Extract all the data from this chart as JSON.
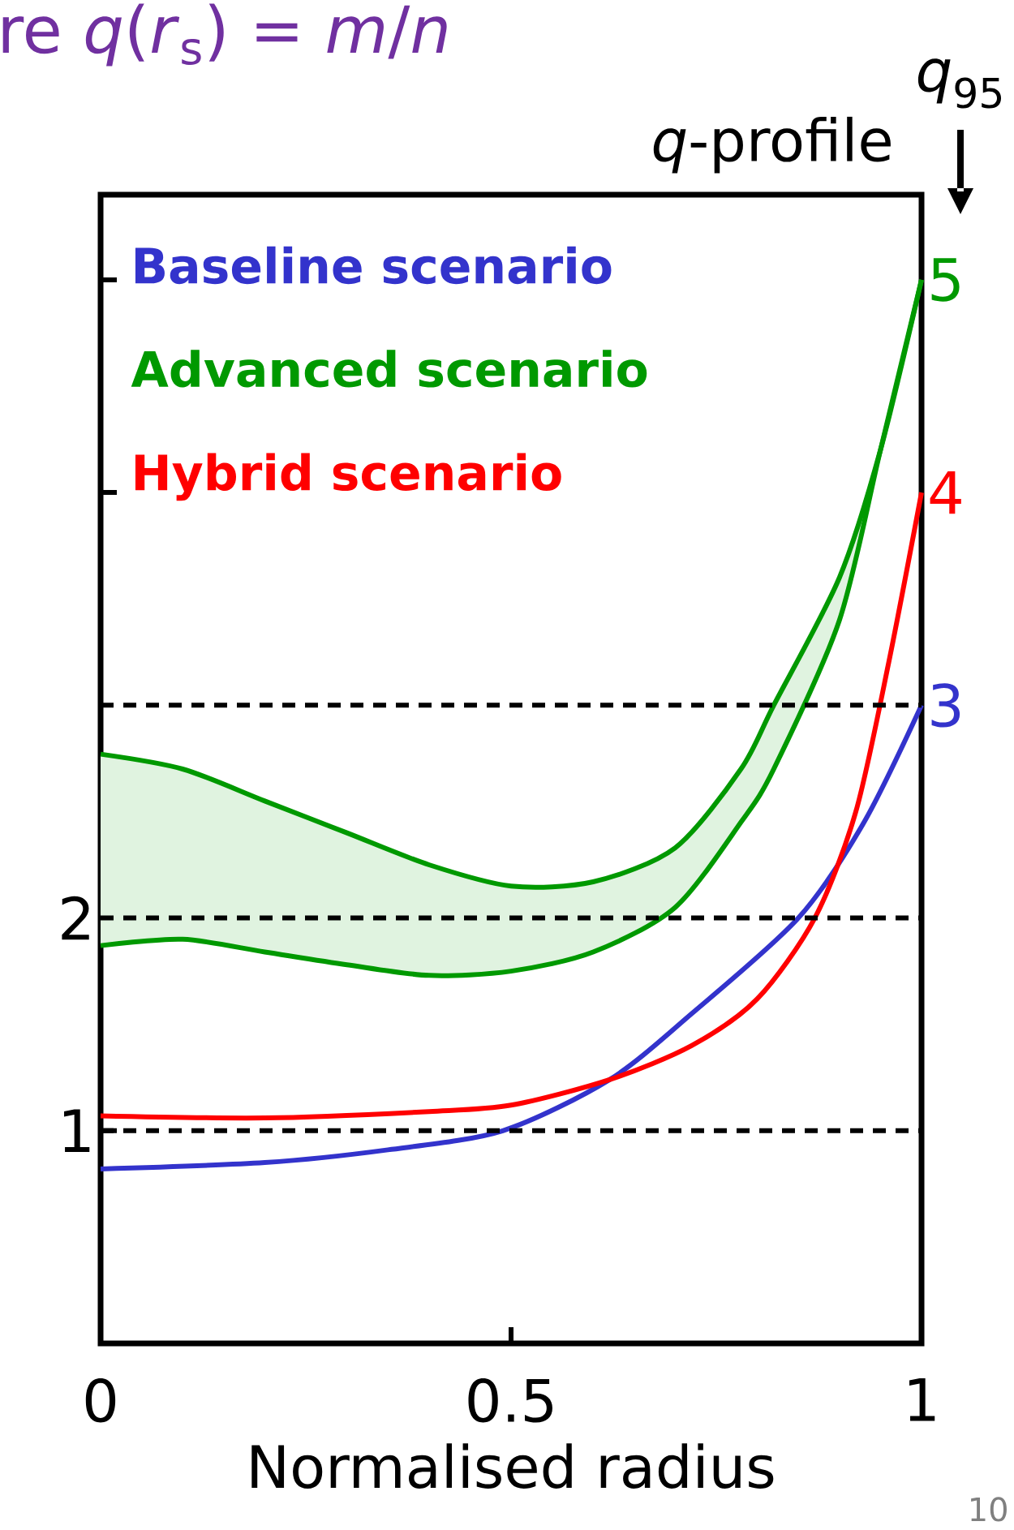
{
  "chart_data": {
    "type": "line",
    "title": "re *q*(*r*$_{s}$) = *m*/*n*",
    "xlabel": "Normalised radius",
    "annotations": [
      "*q*-profile",
      "*q*$_{95}$",
      "10"
    ],
    "xlim": [
      0,
      1
    ],
    "ylim": [
      0,
      5.4
    ],
    "xticks": [
      0,
      0.5,
      1
    ],
    "yticks": [
      1,
      2,
      {
        "value": 4,
        "label": null
      },
      {
        "value": 5,
        "label": null
      }
    ],
    "legend": "top left",
    "line_style": "solid",
    "ref_lines": [
      {
        "axis": "y",
        "value": 1,
        "color": "#000000",
        "line_style": "dashed"
      },
      {
        "axis": "y",
        "value": 2,
        "color": "#000000",
        "line_style": "dashed"
      },
      {
        "axis": "y",
        "value": 3,
        "color": "#000000",
        "line_style": "dashed"
      }
    ],
    "series": [
      {
        "name": "Baseline scenario",
        "color": "#3333cc",
        "x": [
          0,
          0.2,
          0.35,
          0.49,
          0.62,
          0.72,
          0.85,
          0.93,
          1
        ],
        "values": [
          0.82,
          0.85,
          0.91,
          1.0,
          1.24,
          1.55,
          2.0,
          2.45,
          3
        ],
        "value_labels": [
          null,
          null,
          null,
          null,
          null,
          null,
          null,
          null,
          "3"
        ]
      },
      {
        "name": "Advanced scenario",
        "color": "#009900",
        "x": [
          0,
          0.1,
          0.2,
          0.3,
          0.4,
          0.5,
          0.6,
          0.7,
          0.78,
          0.82,
          0.9,
          0.95,
          1
        ],
        "values": [
          2.77,
          2.7,
          2.55,
          2.4,
          2.25,
          2.15,
          2.17,
          2.33,
          2.7,
          3.0,
          3.6,
          4.2,
          5
        ],
        "upper": [
          2.77,
          2.7,
          2.55,
          2.4,
          2.25,
          2.15,
          2.17,
          2.33,
          2.7,
          3.0,
          3.6,
          4.2,
          5
        ],
        "lower": [
          1.87,
          1.9,
          1.84,
          1.78,
          1.73,
          1.75,
          1.84,
          2.05,
          2.45,
          2.7,
          3.4,
          4.2,
          5
        ],
        "value_labels": [
          null,
          null,
          null,
          null,
          null,
          null,
          null,
          null,
          null,
          null,
          null,
          null,
          "5"
        ]
      },
      {
        "color": "#009900",
        "x": [
          0,
          0.1,
          0.2,
          0.3,
          0.4,
          0.5,
          0.6,
          0.7,
          0.78,
          0.82,
          0.9,
          0.95,
          1
        ],
        "values": [
          1.87,
          1.9,
          1.84,
          1.78,
          1.73,
          1.75,
          1.84,
          2.05,
          2.45,
          2.7,
          3.4,
          4.2,
          5
        ]
      },
      {
        "name": "Hybrid scenario",
        "color": "#ff0000",
        "x": [
          0,
          0.2,
          0.4,
          0.5,
          0.62,
          0.72,
          0.8,
          0.87,
          0.92,
          0.96,
          1
        ],
        "values": [
          1.07,
          1.06,
          1.09,
          1.12,
          1.24,
          1.4,
          1.62,
          2.0,
          2.5,
          3.2,
          4
        ],
        "value_labels": [
          null,
          null,
          null,
          null,
          null,
          null,
          null,
          null,
          null,
          null,
          "4"
        ]
      }
    ]
  }
}
